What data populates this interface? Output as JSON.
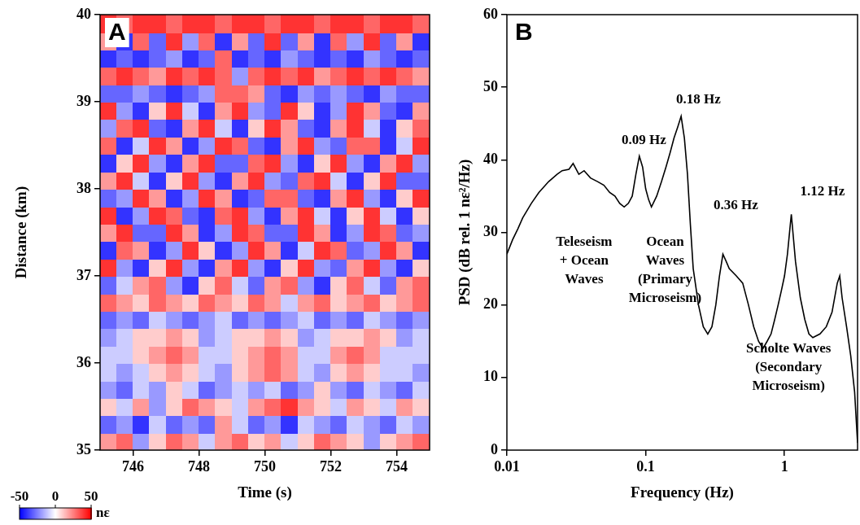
{
  "chart_data": [
    {
      "type": "heatmap",
      "panel": "A",
      "xlabel": "Time (s)",
      "ylabel": "Distance (km)",
      "xlim": [
        745,
        755
      ],
      "ylim": [
        35,
        40
      ],
      "xticks": [
        746,
        748,
        750,
        752,
        754
      ],
      "yticks": [
        35,
        36,
        37,
        38,
        39,
        40
      ],
      "x": [
        745.25,
        745.75,
        746.25,
        746.75,
        747.25,
        747.75,
        748.25,
        748.75,
        749.25,
        749.75,
        750.25,
        750.75,
        751.25,
        751.75,
        752.25,
        752.75,
        753.25,
        753.75,
        754.25,
        754.75
      ],
      "y": [
        35.1,
        35.3,
        35.5,
        35.7,
        35.9,
        36.1,
        36.3,
        36.5,
        36.7,
        36.9,
        37.1,
        37.3,
        37.5,
        37.7,
        37.9,
        38.1,
        38.3,
        38.5,
        38.7,
        38.9,
        39.1,
        39.3,
        39.5,
        39.7,
        39.9
      ],
      "cells": [
        [
          20,
          30,
          -20,
          10,
          30,
          20,
          -10,
          20,
          30,
          10,
          20,
          -10,
          10,
          30,
          20,
          10,
          -20,
          10,
          20,
          30
        ],
        [
          -30,
          -20,
          -40,
          -10,
          -30,
          -20,
          -30,
          20,
          -10,
          -30,
          -20,
          -40,
          -10,
          -20,
          -30,
          -10,
          -20,
          -30,
          -10,
          -20
        ],
        [
          10,
          -10,
          20,
          -20,
          10,
          30,
          20,
          10,
          -10,
          20,
          30,
          40,
          20,
          10,
          -10,
          20,
          10,
          -10,
          20,
          10
        ],
        [
          -20,
          -30,
          -10,
          -20,
          10,
          -10,
          -30,
          -20,
          -10,
          -20,
          -10,
          -30,
          -20,
          10,
          -20,
          -30,
          -10,
          -20,
          -30,
          -10
        ],
        [
          -10,
          -20,
          -10,
          10,
          20,
          10,
          -10,
          -20,
          10,
          20,
          30,
          20,
          -10,
          -20,
          10,
          20,
          10,
          -10,
          -10,
          -20
        ],
        [
          -10,
          -10,
          10,
          20,
          30,
          20,
          -10,
          -10,
          10,
          20,
          30,
          20,
          -10,
          -10,
          20,
          30,
          20,
          -10,
          -10,
          -10
        ],
        [
          -20,
          -10,
          10,
          10,
          20,
          10,
          -20,
          -10,
          10,
          10,
          20,
          10,
          -20,
          -10,
          10,
          10,
          20,
          10,
          -20,
          -10
        ],
        [
          -30,
          -20,
          -30,
          -10,
          -20,
          -30,
          -20,
          -10,
          -30,
          -20,
          -30,
          -20,
          -10,
          -30,
          -20,
          -30,
          -10,
          -20,
          -30,
          -20
        ],
        [
          30,
          20,
          10,
          30,
          20,
          10,
          30,
          20,
          10,
          30,
          20,
          -10,
          20,
          30,
          10,
          20,
          30,
          10,
          20,
          30
        ],
        [
          -30,
          -10,
          20,
          30,
          -20,
          -40,
          10,
          30,
          -10,
          -30,
          20,
          30,
          -20,
          -40,
          10,
          30,
          -10,
          -30,
          20,
          30
        ],
        [
          40,
          -20,
          -40,
          10,
          40,
          -20,
          -40,
          20,
          40,
          -20,
          -40,
          10,
          40,
          -20,
          -30,
          20,
          40,
          -20,
          -40,
          10
        ],
        [
          -40,
          30,
          20,
          -40,
          -20,
          40,
          10,
          -40,
          -20,
          40,
          20,
          -40,
          -10,
          40,
          30,
          -30,
          -20,
          40,
          20,
          -40
        ],
        [
          20,
          40,
          -30,
          -30,
          40,
          20,
          -40,
          -20,
          40,
          30,
          -30,
          -30,
          40,
          20,
          -40,
          -20,
          40,
          30,
          -30,
          -20
        ],
        [
          40,
          -40,
          -20,
          40,
          30,
          -30,
          -40,
          30,
          40,
          -20,
          -40,
          20,
          40,
          -10,
          -40,
          10,
          40,
          -10,
          -40,
          10
        ],
        [
          -30,
          -20,
          40,
          20,
          -40,
          -20,
          40,
          20,
          -40,
          -30,
          30,
          30,
          -30,
          -40,
          20,
          40,
          -20,
          -40,
          10,
          40
        ],
        [
          20,
          40,
          -10,
          -40,
          10,
          40,
          -20,
          -40,
          20,
          40,
          -20,
          -30,
          30,
          40,
          -10,
          -40,
          10,
          40,
          -30,
          -30
        ],
        [
          -40,
          10,
          40,
          -20,
          -40,
          20,
          40,
          -30,
          -30,
          30,
          40,
          -20,
          -40,
          10,
          40,
          -20,
          -40,
          20,
          40,
          -20
        ],
        [
          30,
          -40,
          -10,
          40,
          20,
          -40,
          -20,
          40,
          30,
          -30,
          -40,
          20,
          40,
          -20,
          -30,
          30,
          30,
          -40,
          -10,
          40
        ],
        [
          -20,
          30,
          40,
          -30,
          -40,
          20,
          40,
          -10,
          -40,
          10,
          40,
          20,
          -30,
          -40,
          20,
          40,
          -10,
          -40,
          10,
          30
        ],
        [
          40,
          -20,
          -40,
          10,
          40,
          -10,
          -40,
          20,
          40,
          -20,
          -30,
          40,
          10,
          -40,
          -20,
          40,
          20,
          -30,
          -40,
          20
        ],
        [
          -30,
          -30,
          -20,
          -30,
          -40,
          -30,
          -20,
          30,
          30,
          20,
          -30,
          -40,
          -20,
          -30,
          -20,
          -30,
          -40,
          -20,
          -30,
          -30
        ],
        [
          30,
          40,
          30,
          20,
          40,
          30,
          40,
          30,
          -20,
          30,
          40,
          30,
          40,
          20,
          30,
          40,
          30,
          40,
          30,
          20
        ],
        [
          -40,
          -30,
          -40,
          -30,
          -20,
          -40,
          -30,
          30,
          -40,
          -30,
          -40,
          -20,
          -30,
          -40,
          -30,
          -40,
          -20,
          -30,
          -40,
          -30
        ],
        [
          20,
          -40,
          30,
          -30,
          40,
          -20,
          30,
          -40,
          20,
          -30,
          40,
          -30,
          20,
          -40,
          30,
          -20,
          40,
          -30,
          20,
          -40
        ],
        [
          40,
          30,
          40,
          40,
          30,
          40,
          40,
          30,
          40,
          40,
          30,
          40,
          40,
          30,
          40,
          40,
          30,
          40,
          40,
          30
        ]
      ],
      "colorbar": {
        "range": [
          -50,
          50
        ],
        "ticks": [
          -50,
          0,
          50
        ],
        "label": "nε"
      }
    },
    {
      "type": "line",
      "panel": "B",
      "xlabel": "Frequency (Hz)",
      "ylabel": "PSD (dB rel. 1 nε²/Hz)",
      "log": "x",
      "xlim": [
        0.01,
        3.36
      ],
      "ylim": [
        0,
        60
      ],
      "xticks": [
        0.01,
        0.1,
        1
      ],
      "yticks": [
        0,
        10,
        20,
        30,
        40,
        50,
        60
      ],
      "color": "#000000",
      "x": [
        0.01,
        0.011,
        0.012,
        0.013,
        0.015,
        0.017,
        0.02,
        0.023,
        0.025,
        0.028,
        0.03,
        0.033,
        0.036,
        0.04,
        0.045,
        0.05,
        0.055,
        0.06,
        0.065,
        0.07,
        0.075,
        0.08,
        0.085,
        0.09,
        0.095,
        0.1,
        0.105,
        0.11,
        0.12,
        0.13,
        0.14,
        0.15,
        0.16,
        0.17,
        0.18,
        0.19,
        0.2,
        0.21,
        0.22,
        0.24,
        0.26,
        0.28,
        0.3,
        0.32,
        0.34,
        0.36,
        0.38,
        0.4,
        0.45,
        0.5,
        0.55,
        0.6,
        0.65,
        0.7,
        0.75,
        0.8,
        0.85,
        0.9,
        0.95,
        1.0,
        1.05,
        1.1,
        1.12,
        1.15,
        1.2,
        1.3,
        1.4,
        1.5,
        1.6,
        1.8,
        2.0,
        2.2,
        2.4,
        2.5,
        2.6,
        2.8,
        3.0,
        3.2,
        3.36
      ],
      "values": [
        27,
        29,
        30.5,
        32,
        34,
        35.5,
        37,
        38,
        38.5,
        38.7,
        39.5,
        38,
        38.5,
        37.5,
        37,
        36.5,
        35.5,
        35,
        34,
        33.5,
        34,
        35,
        38,
        40.5,
        39,
        36,
        34.5,
        33.5,
        35,
        37,
        39,
        41,
        43,
        44.5,
        46,
        43,
        38,
        31,
        25,
        20,
        17,
        16,
        17,
        20,
        24,
        27,
        26,
        25,
        24,
        23,
        20,
        17,
        15,
        14,
        15,
        16,
        18,
        20,
        22,
        24,
        27,
        31,
        32.5,
        30,
        26,
        21,
        18,
        16,
        15.5,
        16,
        17,
        19,
        23,
        24,
        21,
        17,
        13,
        8,
        1
      ],
      "annotations": [
        {
          "lines": [
            "0.18 Hz"
          ],
          "x": 0.24,
          "y": 48.3
        },
        {
          "lines": [
            "0.09 Hz"
          ],
          "x": 0.097,
          "y": 42.7
        },
        {
          "lines": [
            "0.36 Hz"
          ],
          "x": 0.446,
          "y": 33.7
        },
        {
          "lines": [
            "1.12 Hz"
          ],
          "x": 1.88,
          "y": 35.6
        },
        {
          "lines": [
            "Teleseism",
            "+ Ocean",
            "Waves"
          ],
          "x": 0.036,
          "y": 28.6
        },
        {
          "lines": [
            "Ocean",
            "Waves",
            "(Primary",
            "Microseism)"
          ],
          "x": 0.138,
          "y": 28.6
        },
        {
          "lines": [
            "Scholte Waves",
            "(Secondary",
            "Microseism)"
          ],
          "x": 1.07,
          "y": 14
        }
      ]
    }
  ]
}
